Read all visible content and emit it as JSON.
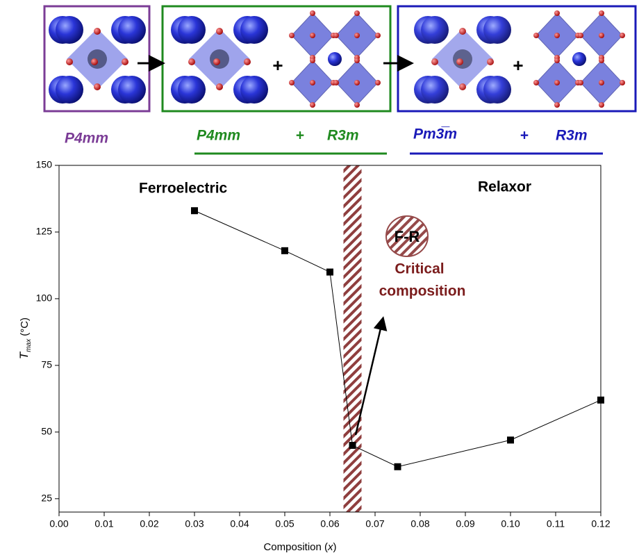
{
  "chart_data": {
    "type": "line",
    "phases": {
      "left": "P4mm",
      "middle": [
        "P4mm",
        "+",
        "R3m"
      ],
      "right": [
        "Pm3̅m",
        "+",
        "R3m"
      ]
    },
    "region_labels": {
      "ferroelectric": "Ferroelectric",
      "relaxor": "Relaxor"
    },
    "critical": {
      "badge": "F-R",
      "label_line1": "Critical",
      "label_line2": "composition",
      "band": [
        0.063,
        0.067
      ]
    },
    "x_label": [
      "Composition (",
      "x",
      ")"
    ],
    "y_label": {
      "symbol": "T",
      "subscript": "max",
      "unit": "(°C)"
    },
    "x": [
      0.03,
      0.05,
      0.06,
      0.065,
      0.075,
      0.1,
      0.12
    ],
    "series": [
      {
        "color": "#000000",
        "values": [
          133,
          118,
          110,
          45,
          37,
          47,
          62
        ]
      }
    ],
    "xlim": [
      0.0,
      0.12
    ],
    "ylim": [
      20,
      150
    ],
    "xticks": [
      {
        "value": 0,
        "label": "0.00"
      },
      0.01,
      0.02,
      0.03,
      0.04,
      0.05,
      0.06,
      0.07,
      0.08,
      0.09,
      {
        "value": 0.1,
        "label": "0.10"
      },
      0.11,
      0.12
    ],
    "yticks": [
      25,
      50,
      75,
      100,
      125,
      150
    ]
  }
}
